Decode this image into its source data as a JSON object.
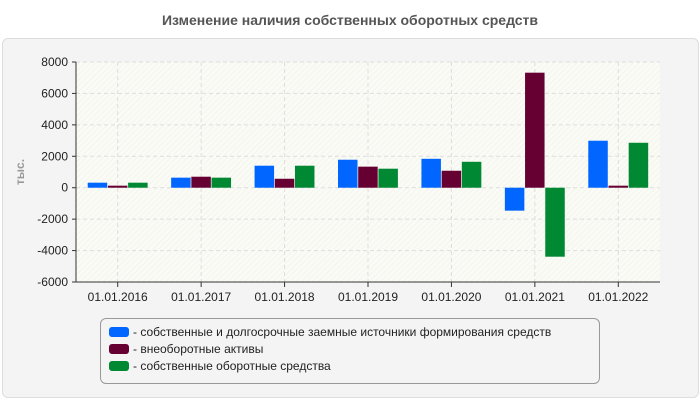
{
  "chart_data": {
    "type": "bar",
    "title": "Изменение наличия собственных оборотных средств",
    "ylabel": "тыс.",
    "xlabel": "",
    "ylim": [
      -6000,
      8000
    ],
    "yticks": [
      -6000,
      -4000,
      -2000,
      0,
      2000,
      4000,
      6000,
      8000
    ],
    "grid": true,
    "legend_position": "bottom",
    "categories": [
      "01.01.2016",
      "01.01.2017",
      "01.01.2018",
      "01.01.2019",
      "01.01.2020",
      "01.01.2021",
      "01.01.2022"
    ],
    "series": [
      {
        "name": "- собственные и долгосрочные заемные источники формирования средств",
        "color": "#0066ff",
        "values": [
          320,
          640,
          1400,
          1780,
          1840,
          -1460,
          2990
        ]
      },
      {
        "name": "- внеоборотные активы",
        "color": "#660033",
        "values": [
          130,
          700,
          570,
          1340,
          1080,
          7320,
          130
        ]
      },
      {
        "name": "- собственные оборотные средства",
        "color": "#008833",
        "values": [
          320,
          640,
          1400,
          1210,
          1650,
          -4390,
          2860
        ]
      }
    ]
  }
}
